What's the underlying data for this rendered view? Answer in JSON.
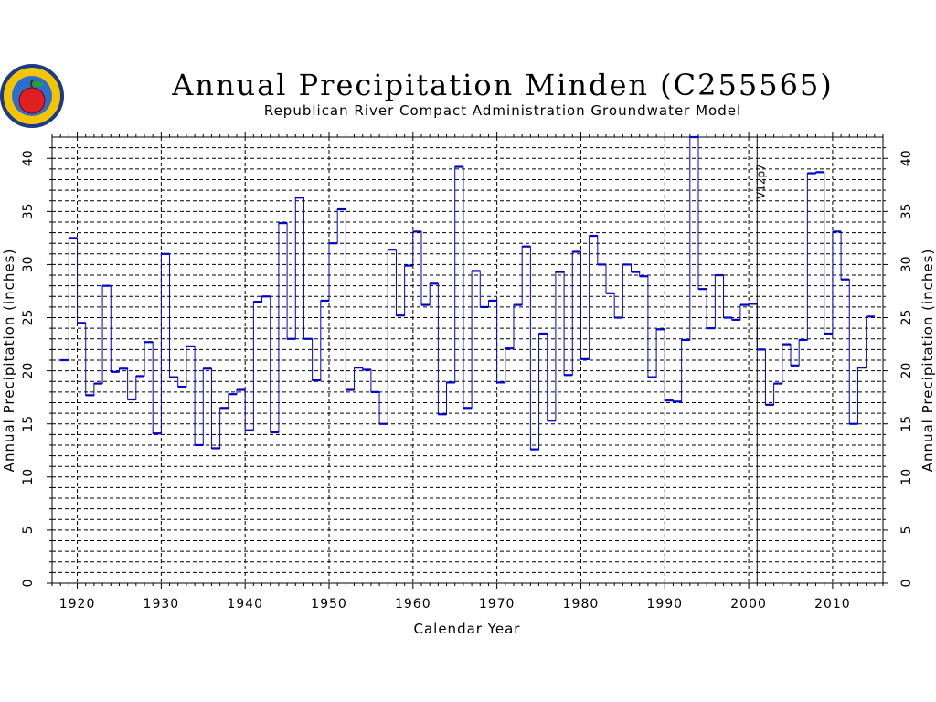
{
  "chart_data": {
    "type": "line",
    "title": "Annual Precipitation Minden (C255565)",
    "subtitle": "Republican River Compact Administration Groundwater Model",
    "xlabel": "Calendar Year",
    "ylabel": "Annual Precipitation (inches)",
    "ylabel_right": "Annual Precipitation (inches)",
    "xlim": [
      1917,
      2016
    ],
    "ylim": [
      0,
      42
    ],
    "x_ticks": [
      "1920",
      "1930",
      "1940",
      "1950",
      "1960",
      "1970",
      "1980",
      "1990",
      "2000",
      "2010"
    ],
    "y_ticks": [
      "0",
      "5",
      "10",
      "15",
      "20",
      "25",
      "30",
      "35",
      "40"
    ],
    "grid": true,
    "step": true,
    "line_color": "#0000cc",
    "annotation": {
      "label": "V12p7",
      "x": 2001
    },
    "series": [
      {
        "x": [
          1918,
          1919,
          1920,
          1921,
          1922,
          1923,
          1924,
          1925,
          1926,
          1927,
          1928,
          1929,
          1930,
          1931,
          1932,
          1933,
          1934,
          1935,
          1936,
          1937,
          1938,
          1939,
          1940,
          1941,
          1942,
          1943,
          1944,
          1945,
          1946,
          1947,
          1948,
          1949,
          1950,
          1951,
          1952,
          1953,
          1954,
          1955,
          1956,
          1957,
          1958,
          1959,
          1960,
          1961,
          1962,
          1963,
          1964,
          1965,
          1966,
          1967,
          1968,
          1969,
          1970,
          1971,
          1972,
          1973,
          1974,
          1975,
          1976,
          1977,
          1978,
          1979,
          1980,
          1981,
          1982,
          1983,
          1984,
          1985,
          1986,
          1987,
          1988,
          1989,
          1990,
          1991,
          1992,
          1993,
          1994,
          1995,
          1996,
          1997,
          1998,
          1999,
          2000,
          2001,
          2002,
          2003,
          2004,
          2005,
          2006,
          2007,
          2008,
          2009,
          2010,
          2011,
          2012,
          2013,
          2014
        ],
        "values": [
          21.0,
          32.5,
          24.5,
          17.7,
          18.8,
          28.0,
          19.9,
          20.2,
          17.3,
          19.5,
          22.7,
          14.1,
          31.0,
          19.4,
          18.5,
          22.3,
          13.0,
          20.2,
          12.7,
          16.5,
          17.8,
          18.2,
          14.4,
          26.5,
          27.0,
          14.2,
          33.9,
          23.0,
          36.3,
          23.0,
          19.1,
          26.6,
          32.0,
          35.2,
          18.2,
          20.3,
          20.1,
          18.0,
          15.0,
          31.4,
          25.2,
          29.9,
          33.1,
          26.2,
          28.2,
          15.9,
          18.9,
          39.2,
          16.5,
          29.4,
          26.0,
          26.6,
          18.9,
          22.1,
          26.2,
          31.7,
          12.6,
          23.5,
          15.3,
          29.3,
          19.6,
          31.2,
          21.1,
          32.7,
          30.0,
          27.3,
          25.0,
          30.0,
          29.3,
          28.9,
          19.4,
          23.9,
          17.2,
          17.1,
          22.9,
          42.0,
          27.7,
          24.0,
          29.0,
          25.0,
          24.8,
          26.2,
          26.3,
          22.0,
          16.8,
          18.8,
          22.5,
          20.5,
          22.9,
          38.6,
          38.7,
          23.5,
          33.1,
          28.6,
          15.0,
          20.3,
          25.1
        ]
      }
    ]
  },
  "logo": {
    "name": "state-seal-logo"
  }
}
